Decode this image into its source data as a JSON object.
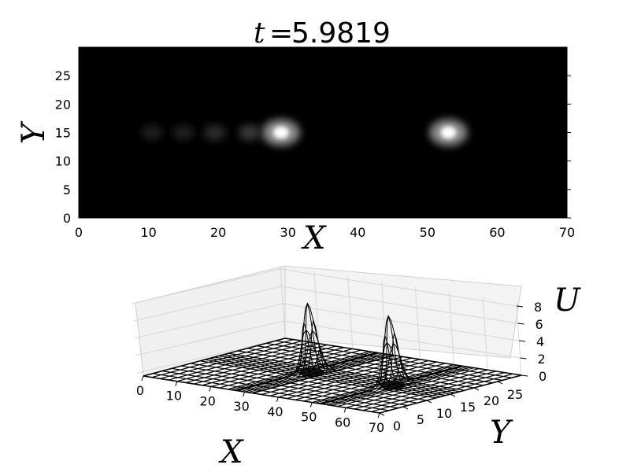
{
  "chart_data": [
    {
      "type": "heatmap",
      "title_var": "t",
      "title_eq": "=",
      "title_value": "5.9819",
      "xlabel": "X",
      "ylabel": "Y",
      "xlim": [
        0,
        70
      ],
      "ylim": [
        0,
        30
      ],
      "xticks": [
        "0",
        "10",
        "20",
        "30",
        "40",
        "50",
        "60",
        "70"
      ],
      "yticks": [
        "0",
        "5",
        "10",
        "15",
        "20",
        "25"
      ],
      "colormap": "gray",
      "peaks": [
        {
          "x": 29.0,
          "y": 15.0,
          "intensity": 1.0
        },
        {
          "x": 53.0,
          "y": 15.0,
          "intensity": 1.0
        },
        {
          "x": 24.5,
          "y": 15.0,
          "intensity": 0.22
        },
        {
          "x": 19.5,
          "y": 15.0,
          "intensity": 0.16
        },
        {
          "x": 15.0,
          "y": 15.0,
          "intensity": 0.12
        },
        {
          "x": 10.5,
          "y": 15.0,
          "intensity": 0.1
        }
      ]
    },
    {
      "type": "surface",
      "xlabel": "X",
      "ylabel": "Y",
      "zlabel": "U",
      "xlim": [
        0,
        70
      ],
      "ylim": [
        0,
        30
      ],
      "zlim": [
        0,
        8
      ],
      "xticks": [
        "0",
        "10",
        "20",
        "30",
        "40",
        "50",
        "60",
        "70"
      ],
      "yticks": [
        "0",
        "5",
        "10",
        "15",
        "20",
        "25"
      ],
      "zticks": [
        "0",
        "2",
        "4",
        "6",
        "8"
      ],
      "peaks": [
        {
          "x": 29.0,
          "y": 15.0,
          "height": 8.0
        },
        {
          "x": 53.0,
          "y": 15.0,
          "height": 8.0
        }
      ]
    }
  ]
}
